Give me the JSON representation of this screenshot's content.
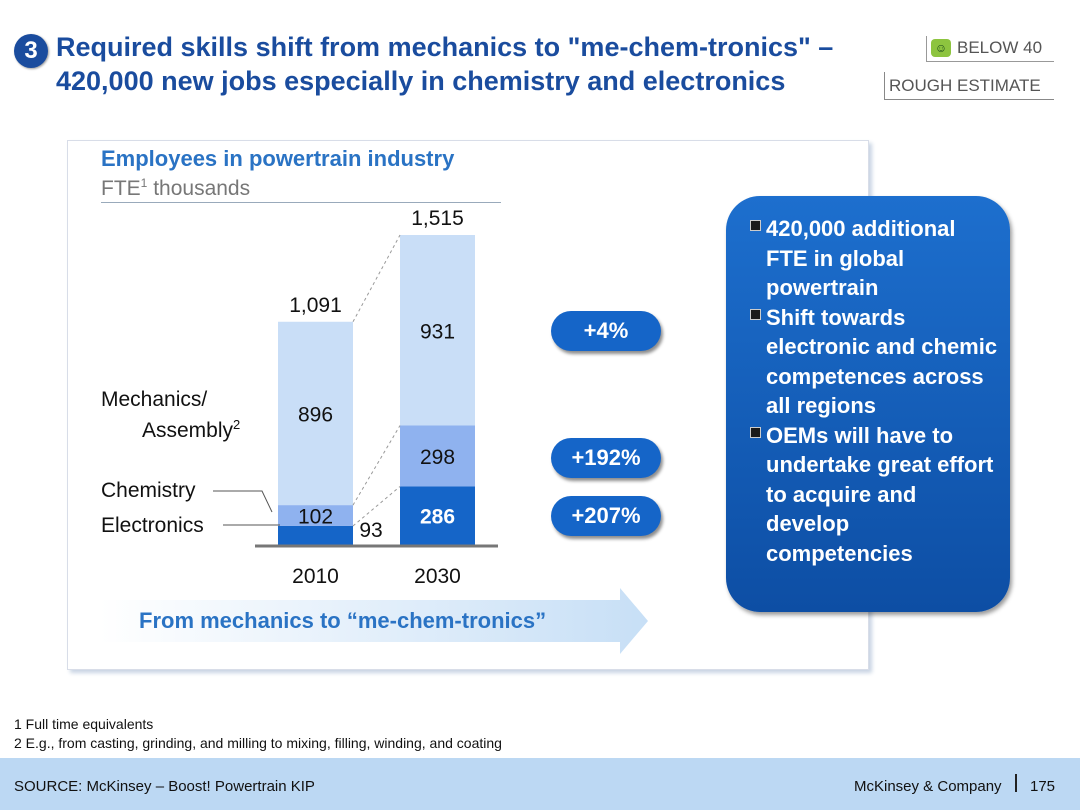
{
  "header": {
    "section_number": "3",
    "title_line1": "Required skills shift from mechanics to \"me-chem-tronics\" –",
    "title_line2": "420,000 new jobs especially in chemistry and electronics",
    "tag_below": "BELOW 40",
    "tag_estimate": "ROUGH ESTIMATE"
  },
  "chart_data": {
    "type": "bar",
    "stacked": true,
    "title": "Employees in powertrain industry",
    "subtitle": "FTE",
    "subtitle_sup": "1",
    "subtitle_unit": " thousands",
    "categories": [
      "2010",
      "2030"
    ],
    "series": [
      {
        "name": "Electronics",
        "values": [
          93,
          286
        ],
        "color": "#1565c8"
      },
      {
        "name": "Chemistry",
        "values": [
          102,
          298
        ],
        "color": "#8fb2ef"
      },
      {
        "name": "Mechanics/ Assembly",
        "values": [
          896,
          931
        ],
        "color": "#c9def7"
      }
    ],
    "totals": [
      "1,091",
      "1,515"
    ],
    "value_labels": [
      [
        "93",
        "102",
        "896"
      ],
      [
        "286",
        "298",
        "931"
      ]
    ],
    "ylim": [
      0,
      1515
    ]
  },
  "labels": {
    "mechanics_line1": "Mechanics/",
    "mechanics_line2": "Assembly",
    "mechanics_sup": "2",
    "chemistry": "Chemistry",
    "electronics": "Electronics"
  },
  "growth": {
    "mechanics": "+4%",
    "chemistry": "+192%",
    "electronics": "+207%"
  },
  "info_box": {
    "items": [
      "420,000 additional FTE in global powertrain",
      "Shift towards electronic and chemic competences across all regions",
      "OEMs will have to undertake great effort to acquire and develop competencies"
    ]
  },
  "arrow_text": "From mechanics to “me-chem-tronics”",
  "footnotes": {
    "note1": "1 Full time equivalents",
    "note2": "2 E.g., from casting, grinding, and milling to mixing, filling, winding, and coating"
  },
  "footer": {
    "source": "SOURCE: McKinsey – Boost! Powertrain KIP",
    "brand": "McKinsey & Company",
    "page_number": "175"
  },
  "colors": {
    "accent": "#1a4c9e",
    "chart_title": "#2a73c4",
    "footer_bg": "#bcd8f3"
  }
}
